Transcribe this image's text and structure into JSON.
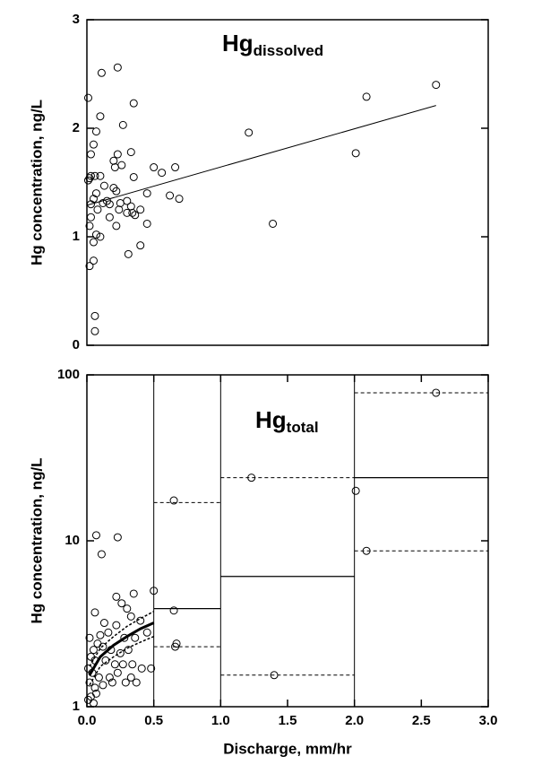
{
  "chart_data": [
    {
      "type": "scatter",
      "title": {
        "text": "Hg",
        "subscript": "dissolved"
      },
      "ylabel": "Hg concentration, ng/L",
      "xlim": [
        0,
        3
      ],
      "ylim": [
        0,
        3
      ],
      "yticks": [
        0,
        1,
        2,
        3
      ],
      "points": {
        "x": [
          0.01,
          0.11,
          0.23,
          0.35,
          0.1,
          0.27,
          0.07,
          0.05,
          0.03,
          0.23,
          0.33,
          0.2,
          0.21,
          0.26,
          0.5,
          0.66,
          0.35,
          0.03,
          0.02,
          0.01,
          0.06,
          0.1,
          0.56,
          0.2,
          0.22,
          0.13,
          0.07,
          0.05,
          0.15,
          0.17,
          0.3,
          0.33,
          0.25,
          0.45,
          0.62,
          0.69,
          0.03,
          0.08,
          0.12,
          0.24,
          0.3,
          0.34,
          0.4,
          0.36,
          0.17,
          0.03,
          0.02,
          0.07,
          0.1,
          0.05,
          0.45,
          0.22,
          0.4,
          0.05,
          0.02,
          0.31,
          0.06,
          0.06,
          1.21,
          2.09,
          2.61,
          2.01,
          1.39
        ],
        "y": [
          2.28,
          2.51,
          2.56,
          2.23,
          2.11,
          2.03,
          1.97,
          1.85,
          1.76,
          1.76,
          1.78,
          1.7,
          1.64,
          1.66,
          1.64,
          1.64,
          1.55,
          1.56,
          1.54,
          1.52,
          1.56,
          1.56,
          1.59,
          1.45,
          1.42,
          1.47,
          1.4,
          1.35,
          1.33,
          1.3,
          1.33,
          1.28,
          1.31,
          1.4,
          1.38,
          1.35,
          1.3,
          1.25,
          1.31,
          1.25,
          1.22,
          1.22,
          1.25,
          1.2,
          1.18,
          1.18,
          1.1,
          1.02,
          1.0,
          0.95,
          1.12,
          1.1,
          0.92,
          0.78,
          0.73,
          0.84,
          0.27,
          0.13,
          1.96,
          2.29,
          2.4,
          1.77,
          1.12
        ]
      },
      "fit_line": {
        "x": [
          0,
          2.61
        ],
        "y": [
          1.29,
          2.21
        ]
      }
    },
    {
      "type": "scatter",
      "title": {
        "text": "Hg",
        "subscript": "total"
      },
      "ylabel": "Hg concentration, ng/L",
      "xlabel": "Discharge, mm/hr",
      "log_y": true,
      "xlim": [
        0,
        3
      ],
      "ylim": [
        1,
        100
      ],
      "yticks": [
        1,
        10,
        100
      ],
      "xticks": [
        {
          "value": 0,
          "label": "0.0"
        },
        0.5,
        {
          "value": 1,
          "label": "1.0"
        },
        1.5,
        {
          "value": 2,
          "label": "2.0"
        },
        2.5,
        {
          "value": 3,
          "label": "3.0"
        }
      ],
      "points": {
        "x": [
          0.07,
          0.23,
          0.11,
          0.22,
          0.5,
          0.35,
          0.26,
          0.13,
          0.3,
          0.06,
          0.33,
          0.4,
          0.22,
          0.1,
          0.16,
          0.28,
          0.36,
          0.45,
          0.02,
          0.05,
          0.08,
          0.12,
          0.18,
          0.25,
          0.31,
          0.03,
          0.06,
          0.14,
          0.21,
          0.27,
          0.34,
          0.41,
          0.48,
          0.01,
          0.04,
          0.09,
          0.17,
          0.23,
          0.29,
          0.33,
          0.02,
          0.06,
          0.12,
          0.19,
          0.37,
          0.03,
          0.07,
          0.01,
          0.05,
          0.65,
          0.65,
          0.66,
          0.67,
          1.23,
          1.4,
          2.01,
          2.09,
          2.61
        ],
        "y": [
          10.8,
          10.5,
          8.3,
          4.6,
          5.0,
          4.8,
          4.2,
          3.2,
          3.9,
          3.7,
          3.5,
          3.3,
          3.1,
          2.7,
          2.8,
          2.6,
          2.6,
          2.8,
          2.6,
          2.2,
          2.4,
          2.3,
          2.2,
          2.1,
          2.2,
          2.0,
          1.9,
          1.9,
          1.8,
          1.8,
          1.8,
          1.7,
          1.7,
          1.7,
          1.6,
          1.5,
          1.5,
          1.6,
          1.4,
          1.5,
          1.4,
          1.3,
          1.35,
          1.4,
          1.4,
          1.15,
          1.2,
          1.1,
          1.05,
          17.5,
          3.8,
          2.3,
          2.4,
          24,
          1.55,
          20,
          8.7,
          78
        ]
      },
      "curves": [
        {
          "style": "thick",
          "x": [
            0.02,
            0.1,
            0.2,
            0.3,
            0.4,
            0.5
          ],
          "y": [
            1.55,
            2.0,
            2.35,
            2.65,
            2.95,
            3.2
          ]
        },
        {
          "style": "dashed",
          "x": [
            0.02,
            0.1,
            0.2,
            0.3,
            0.4,
            0.5
          ],
          "y": [
            1.35,
            1.75,
            2.0,
            2.25,
            2.45,
            2.65
          ]
        },
        {
          "style": "dashed",
          "x": [
            0.02,
            0.1,
            0.2,
            0.3,
            0.4,
            0.5
          ],
          "y": [
            1.75,
            2.25,
            2.65,
            3.05,
            3.4,
            3.75
          ]
        }
      ],
      "bins": [
        {
          "x": [
            0.5,
            1.0
          ],
          "median": 3.9,
          "upper": 17,
          "lower": 2.3
        },
        {
          "x": [
            1.0,
            2.0
          ],
          "median": 6.1,
          "upper": 24,
          "lower": 1.55
        },
        {
          "x": [
            2.0,
            3.0
          ],
          "median": 24,
          "upper": 78,
          "lower": 8.7
        }
      ]
    }
  ]
}
